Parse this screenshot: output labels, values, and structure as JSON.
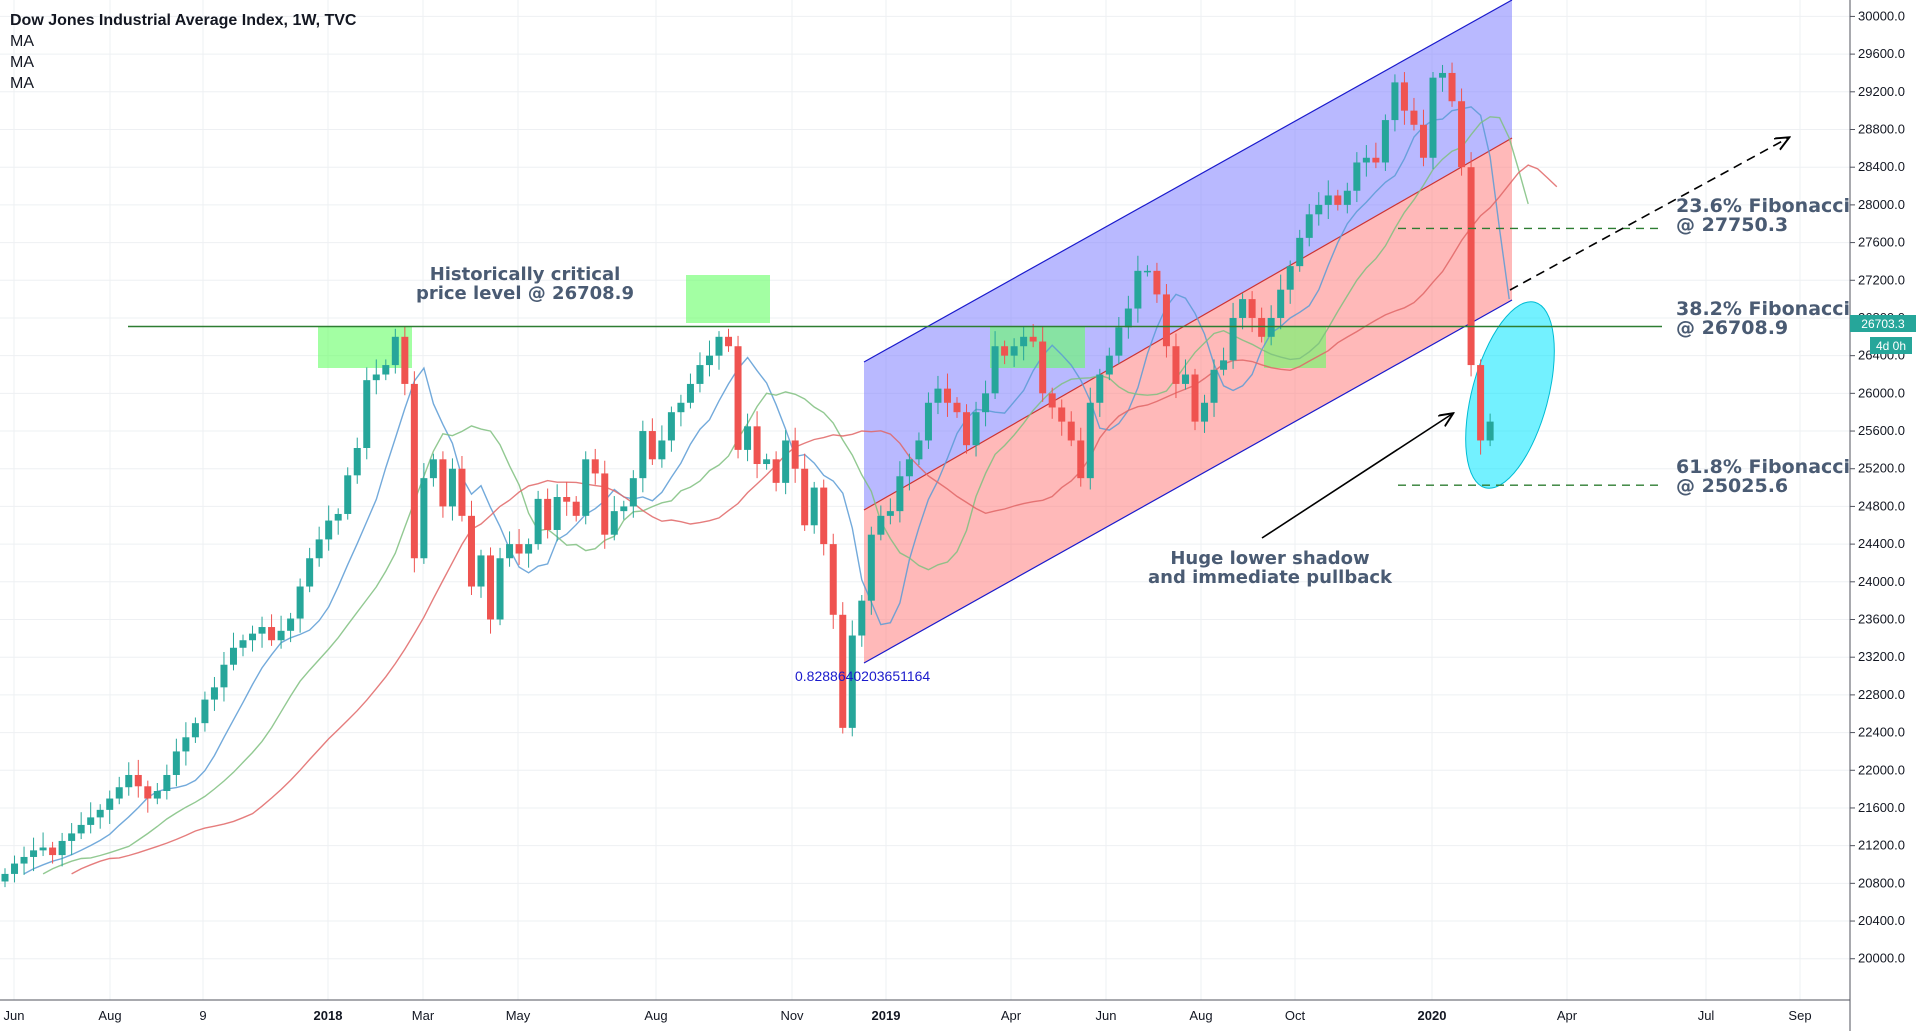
{
  "legend": {
    "title": "Dow Jones Industrial Average Index, 1W, TVC",
    "ma_items": [
      "MA",
      "MA",
      "MA"
    ]
  },
  "annotations": {
    "critical_level": [
      "Historically critical",
      "price level @ 26708.9"
    ],
    "fib_236": [
      "23.6% Fibonacci",
      "@ 27750.3"
    ],
    "fib_382": [
      "38.2% Fibonacci",
      "@ 26708.9"
    ],
    "fib_618": [
      "61.8% Fibonacci",
      "@ 25025.6"
    ],
    "shadow_note": [
      "Huge lower shadow",
      "and immediate pullback"
    ],
    "channel_ratio": "0.8288640203651164"
  },
  "price_tags": {
    "current": "26703.3",
    "countdown": "4d 0h"
  },
  "colors": {
    "up": "#26a69a",
    "down": "#ef5350",
    "ma_fast": "#5b9bd5",
    "ma_mid": "#7fbf7f",
    "ma_slow": "#e06666",
    "channel_upper": "#8080ff",
    "channel_lower": "#ff8080",
    "highlight_green": "#66ff66",
    "highlight_cyan": "#00e5ff",
    "annotation_text": "#4a5b73",
    "fib_line": "#2e7d32"
  },
  "chart_data": {
    "type": "candlestick",
    "title": "Dow Jones Industrial Average Index, 1W, TVC",
    "y_axis": {
      "ylim": [
        19700,
        30100
      ],
      "ticks": [
        "30000.0",
        "29600.0",
        "29200.0",
        "28800.0",
        "28400.0",
        "28000.0",
        "27600.0",
        "27200.0",
        "26800.0",
        "26400.0",
        "26000.0",
        "25600.0",
        "25200.0",
        "24800.0",
        "24400.0",
        "24000.0",
        "23600.0",
        "23200.0",
        "22800.0",
        "22400.0",
        "22000.0",
        "21600.0",
        "21200.0",
        "20800.0",
        "20400.0",
        "20000.0"
      ]
    },
    "x_axis": {
      "ticks": [
        "Jun",
        "Aug",
        "9",
        "2018",
        "Mar",
        "May",
        "Aug",
        "Nov",
        "2019",
        "Apr",
        "Jun",
        "Aug",
        "Oct",
        "2020",
        "Apr",
        "Jul",
        "Sep"
      ]
    },
    "levels": {
      "critical": 26708.9,
      "fib_236": 27750.3,
      "fib_382": 26708.9,
      "fib_618": 25025.6,
      "last_price": 26703.3
    },
    "closes": [
      20900,
      21010,
      21080,
      21150,
      21180,
      21100,
      21250,
      21330,
      21420,
      21500,
      21580,
      21700,
      21820,
      21950,
      21830,
      21700,
      21780,
      21950,
      22200,
      22350,
      22500,
      22750,
      22880,
      23120,
      23300,
      23380,
      23450,
      23520,
      23380,
      23480,
      23610,
      23950,
      24250,
      24450,
      24650,
      24720,
      25130,
      25420,
      26140,
      26200,
      26300,
      26600,
      26100,
      24250,
      25100,
      25300,
      24800,
      25200,
      24700,
      23950,
      24280,
      23600,
      24250,
      24400,
      24300,
      24400,
      24880,
      24550,
      24900,
      24850,
      24700,
      25300,
      25150,
      24500,
      24750,
      24800,
      25100,
      25600,
      25300,
      25500,
      25800,
      25900,
      26100,
      26300,
      26400,
      26600,
      26500,
      25400,
      25650,
      25250,
      25300,
      25050,
      25500,
      25200,
      24600,
      25000,
      24400,
      23650,
      22450,
      23430,
      23800,
      24500,
      24700,
      24750,
      25120,
      25300,
      25500,
      25900,
      26050,
      25900,
      25800,
      25450,
      25800,
      26000,
      26500,
      26400,
      26500,
      26600,
      26550,
      26000,
      25850,
      25700,
      25500,
      25100,
      25900,
      26200,
      26400,
      26700,
      26900,
      27300,
      27300,
      27050,
      26500,
      26100,
      26200,
      25700,
      25900,
      26250,
      26350,
      26800,
      27000,
      26800,
      26600,
      26800,
      27100,
      27350,
      27650,
      27900,
      28000,
      28100,
      28000,
      28150,
      28450,
      28500,
      28450,
      28900,
      29300,
      29000,
      28850,
      28500,
      29350,
      29400,
      29100,
      28400,
      26300,
      25500,
      25700
    ],
    "moving_averages": [
      {
        "name": "MA",
        "color": "ma_fast"
      },
      {
        "name": "MA",
        "color": "ma_mid"
      },
      {
        "name": "MA",
        "color": "ma_slow"
      }
    ]
  }
}
